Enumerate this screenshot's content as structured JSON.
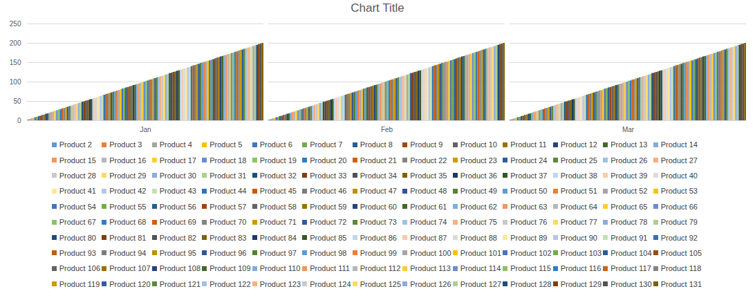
{
  "chart_data": {
    "type": "bar",
    "title": "Chart Title",
    "categories": [
      "Jan",
      "Feb",
      "Mar"
    ],
    "ylim": [
      0,
      250
    ],
    "yticks": [
      0,
      50,
      100,
      150,
      200,
      250
    ],
    "grid": true,
    "legend": "bottom",
    "series": [
      {
        "name": "Product 2",
        "color": "#5B9BD5",
        "values": [
          2,
          2,
          2
        ]
      },
      {
        "name": "Product 3",
        "color": "#ED7D31",
        "values": [
          3,
          3,
          3
        ]
      },
      {
        "name": "Product 4",
        "color": "#A5A5A5",
        "values": [
          5,
          5,
          5
        ]
      },
      {
        "name": "Product 5",
        "color": "#FFC000",
        "values": [
          6,
          6,
          6
        ]
      },
      {
        "name": "Product 6",
        "color": "#4472C4",
        "values": [
          8,
          8,
          8
        ]
      },
      {
        "name": "Product 7",
        "color": "#70AD47",
        "values": [
          9,
          9,
          9
        ]
      },
      {
        "name": "Product 8",
        "color": "#255E91",
        "values": [
          11,
          11,
          11
        ]
      },
      {
        "name": "Product 9",
        "color": "#9E480E",
        "values": [
          12,
          12,
          12
        ]
      },
      {
        "name": "Product 10",
        "color": "#636363",
        "values": [
          14,
          14,
          14
        ]
      },
      {
        "name": "Product 11",
        "color": "#997300",
        "values": [
          15,
          15,
          15
        ]
      },
      {
        "name": "Product 12",
        "color": "#264478",
        "values": [
          17,
          17,
          17
        ]
      },
      {
        "name": "Product 13",
        "color": "#43682B",
        "values": [
          18,
          18,
          18
        ]
      },
      {
        "name": "Product 14",
        "color": "#7CAFDD",
        "values": [
          20,
          20,
          20
        ]
      },
      {
        "name": "Product 15",
        "color": "#F1975A",
        "values": [
          22,
          22,
          22
        ]
      },
      {
        "name": "Product 16",
        "color": "#B7B7B7",
        "values": [
          23,
          23,
          23
        ]
      },
      {
        "name": "Product 17",
        "color": "#FFCD33",
        "values": [
          25,
          25,
          25
        ]
      },
      {
        "name": "Product 18",
        "color": "#698ED0",
        "values": [
          26,
          26,
          26
        ]
      },
      {
        "name": "Product 19",
        "color": "#8CC168",
        "values": [
          28,
          28,
          28
        ]
      },
      {
        "name": "Product 20",
        "color": "#327DC2",
        "values": [
          29,
          29,
          29
        ]
      },
      {
        "name": "Product 21",
        "color": "#D26012",
        "values": [
          31,
          31,
          31
        ]
      },
      {
        "name": "Product 22",
        "color": "#848484",
        "values": [
          32,
          32,
          32
        ]
      },
      {
        "name": "Product 23",
        "color": "#CC9A00",
        "values": [
          34,
          34,
          34
        ]
      },
      {
        "name": "Product 24",
        "color": "#335AA1",
        "values": [
          35,
          35,
          35
        ]
      },
      {
        "name": "Product 25",
        "color": "#5A8A39",
        "values": [
          37,
          37,
          37
        ]
      },
      {
        "name": "Product 26",
        "color": "#9DC3E6",
        "values": [
          38,
          38,
          38
        ]
      },
      {
        "name": "Product 27",
        "color": "#F4B183",
        "values": [
          40,
          40,
          40
        ]
      },
      {
        "name": "Product 28",
        "color": "#C9C9C9",
        "values": [
          42,
          42,
          42
        ]
      },
      {
        "name": "Product 29",
        "color": "#FFD966",
        "values": [
          43,
          43,
          43
        ]
      },
      {
        "name": "Product 30",
        "color": "#8FAADC",
        "values": [
          45,
          45,
          45
        ]
      },
      {
        "name": "Product 31",
        "color": "#A9D18E",
        "values": [
          46,
          46,
          46
        ]
      },
      {
        "name": "Product 32",
        "color": "#1F4E79",
        "values": [
          48,
          48,
          48
        ]
      },
      {
        "name": "Product 33",
        "color": "#843C0C",
        "values": [
          49,
          49,
          49
        ]
      },
      {
        "name": "Product 34",
        "color": "#525252",
        "values": [
          51,
          51,
          51
        ]
      },
      {
        "name": "Product 35",
        "color": "#7F6000",
        "values": [
          52,
          52,
          52
        ]
      },
      {
        "name": "Product 36",
        "color": "#203864",
        "values": [
          54,
          54,
          54
        ]
      },
      {
        "name": "Product 37",
        "color": "#385723",
        "values": [
          55,
          55,
          55
        ]
      },
      {
        "name": "Product 38",
        "color": "#BDD7EE",
        "values": [
          57,
          57,
          57
        ]
      },
      {
        "name": "Product 39",
        "color": "#F8CBAD",
        "values": [
          58,
          58,
          58
        ]
      },
      {
        "name": "Product 40",
        "color": "#DBDBDB",
        "values": [
          60,
          60,
          60
        ]
      },
      {
        "name": "Product 41",
        "color": "#FFE699",
        "values": [
          62,
          62,
          62
        ]
      },
      {
        "name": "Product 42",
        "color": "#B4C7E7",
        "values": [
          63,
          63,
          63
        ]
      },
      {
        "name": "Product 43",
        "color": "#C5E0B4",
        "values": [
          65,
          65,
          65
        ]
      },
      {
        "name": "Product 44",
        "color": "#2E75B6",
        "values": [
          66,
          66,
          66
        ]
      },
      {
        "name": "Product 45",
        "color": "#C55A11",
        "values": [
          68,
          68,
          68
        ]
      },
      {
        "name": "Product 46",
        "color": "#7B7B7B",
        "values": [
          69,
          69,
          69
        ]
      },
      {
        "name": "Product 47",
        "color": "#BF9000",
        "values": [
          71,
          71,
          71
        ]
      },
      {
        "name": "Product 48",
        "color": "#2F5597",
        "values": [
          72,
          72,
          72
        ]
      },
      {
        "name": "Product 49",
        "color": "#548235",
        "values": [
          74,
          74,
          74
        ]
      },
      {
        "name": "Product 50",
        "color": "#5B9BD5",
        "values": [
          75,
          75,
          75
        ]
      },
      {
        "name": "Product 51",
        "color": "#ED7D31",
        "values": [
          77,
          77,
          77
        ]
      },
      {
        "name": "Product 52",
        "color": "#A5A5A5",
        "values": [
          78,
          78,
          78
        ]
      },
      {
        "name": "Product 53",
        "color": "#FFC000",
        "values": [
          80,
          80,
          80
        ]
      },
      {
        "name": "Product 54",
        "color": "#4472C4",
        "values": [
          82,
          82,
          82
        ]
      },
      {
        "name": "Product 55",
        "color": "#70AD47",
        "values": [
          83,
          83,
          83
        ]
      },
      {
        "name": "Product 56",
        "color": "#255E91",
        "values": [
          85,
          85,
          85
        ]
      },
      {
        "name": "Product 57",
        "color": "#9E480E",
        "values": [
          86,
          86,
          86
        ]
      },
      {
        "name": "Product 58",
        "color": "#636363",
        "values": [
          88,
          88,
          88
        ]
      },
      {
        "name": "Product 59",
        "color": "#997300",
        "values": [
          89,
          89,
          89
        ]
      },
      {
        "name": "Product 60",
        "color": "#264478",
        "values": [
          91,
          91,
          91
        ]
      },
      {
        "name": "Product 61",
        "color": "#43682B",
        "values": [
          92,
          92,
          92
        ]
      },
      {
        "name": "Product 62",
        "color": "#7CAFDD",
        "values": [
          94,
          94,
          94
        ]
      },
      {
        "name": "Product 63",
        "color": "#F1975A",
        "values": [
          95,
          95,
          95
        ]
      },
      {
        "name": "Product 64",
        "color": "#B7B7B7",
        "values": [
          97,
          97,
          97
        ]
      },
      {
        "name": "Product 65",
        "color": "#FFCD33",
        "values": [
          98,
          98,
          98
        ]
      },
      {
        "name": "Product 66",
        "color": "#698ED0",
        "values": [
          100,
          100,
          100
        ]
      },
      {
        "name": "Product 67",
        "color": "#8CC168",
        "values": [
          102,
          102,
          102
        ]
      },
      {
        "name": "Product 68",
        "color": "#327DC2",
        "values": [
          103,
          103,
          103
        ]
      },
      {
        "name": "Product 69",
        "color": "#D26012",
        "values": [
          105,
          105,
          105
        ]
      },
      {
        "name": "Product 70",
        "color": "#848484",
        "values": [
          106,
          106,
          106
        ]
      },
      {
        "name": "Product 71",
        "color": "#CC9A00",
        "values": [
          108,
          108,
          108
        ]
      },
      {
        "name": "Product 72",
        "color": "#335AA1",
        "values": [
          109,
          109,
          109
        ]
      },
      {
        "name": "Product 73",
        "color": "#5A8A39",
        "values": [
          111,
          111,
          111
        ]
      },
      {
        "name": "Product 74",
        "color": "#9DC3E6",
        "values": [
          112,
          112,
          112
        ]
      },
      {
        "name": "Product 75",
        "color": "#F4B183",
        "values": [
          114,
          114,
          114
        ]
      },
      {
        "name": "Product 76",
        "color": "#C9C9C9",
        "values": [
          115,
          115,
          115
        ]
      },
      {
        "name": "Product 77",
        "color": "#FFD966",
        "values": [
          117,
          117,
          117
        ]
      },
      {
        "name": "Product 78",
        "color": "#8FAADC",
        "values": [
          118,
          118,
          118
        ]
      },
      {
        "name": "Product 79",
        "color": "#A9D18E",
        "values": [
          120,
          120,
          120
        ]
      },
      {
        "name": "Product 80",
        "color": "#1F4E79",
        "values": [
          122,
          122,
          122
        ]
      },
      {
        "name": "Product 81",
        "color": "#843C0C",
        "values": [
          123,
          123,
          123
        ]
      },
      {
        "name": "Product 82",
        "color": "#525252",
        "values": [
          125,
          125,
          125
        ]
      },
      {
        "name": "Product 83",
        "color": "#7F6000",
        "values": [
          126,
          126,
          126
        ]
      },
      {
        "name": "Product 84",
        "color": "#203864",
        "values": [
          128,
          128,
          128
        ]
      },
      {
        "name": "Product 85",
        "color": "#385723",
        "values": [
          129,
          129,
          129
        ]
      },
      {
        "name": "Product 86",
        "color": "#BDD7EE",
        "values": [
          131,
          131,
          131
        ]
      },
      {
        "name": "Product 87",
        "color": "#F8CBAD",
        "values": [
          132,
          132,
          132
        ]
      },
      {
        "name": "Product 88",
        "color": "#DBDBDB",
        "values": [
          134,
          134,
          134
        ]
      },
      {
        "name": "Product 89",
        "color": "#FFE699",
        "values": [
          135,
          135,
          135
        ]
      },
      {
        "name": "Product 90",
        "color": "#B4C7E7",
        "values": [
          137,
          137,
          137
        ]
      },
      {
        "name": "Product 91",
        "color": "#C5E0B4",
        "values": [
          138,
          138,
          138
        ]
      },
      {
        "name": "Product 92",
        "color": "#2E75B6",
        "values": [
          140,
          140,
          140
        ]
      },
      {
        "name": "Product 93",
        "color": "#C55A11",
        "values": [
          142,
          142,
          142
        ]
      },
      {
        "name": "Product 94",
        "color": "#7B7B7B",
        "values": [
          143,
          143,
          143
        ]
      },
      {
        "name": "Product 95",
        "color": "#BF9000",
        "values": [
          145,
          145,
          145
        ]
      },
      {
        "name": "Product 96",
        "color": "#2F5597",
        "values": [
          146,
          146,
          146
        ]
      },
      {
        "name": "Product 97",
        "color": "#548235",
        "values": [
          148,
          148,
          148
        ]
      },
      {
        "name": "Product 98",
        "color": "#5B9BD5",
        "values": [
          149,
          149,
          149
        ]
      },
      {
        "name": "Product 99",
        "color": "#ED7D31",
        "values": [
          151,
          151,
          151
        ]
      },
      {
        "name": "Product 100",
        "color": "#A5A5A5",
        "values": [
          152,
          152,
          152
        ]
      },
      {
        "name": "Product 101",
        "color": "#FFC000",
        "values": [
          154,
          154,
          154
        ]
      },
      {
        "name": "Product 102",
        "color": "#4472C4",
        "values": [
          155,
          155,
          155
        ]
      },
      {
        "name": "Product 103",
        "color": "#70AD47",
        "values": [
          157,
          157,
          157
        ]
      },
      {
        "name": "Product 104",
        "color": "#255E91",
        "values": [
          158,
          158,
          158
        ]
      },
      {
        "name": "Product 105",
        "color": "#9E480E",
        "values": [
          160,
          160,
          160
        ]
      },
      {
        "name": "Product 106",
        "color": "#636363",
        "values": [
          162,
          162,
          162
        ]
      },
      {
        "name": "Product 107",
        "color": "#997300",
        "values": [
          163,
          163,
          163
        ]
      },
      {
        "name": "Product 108",
        "color": "#264478",
        "values": [
          165,
          165,
          165
        ]
      },
      {
        "name": "Product 109",
        "color": "#43682B",
        "values": [
          166,
          166,
          166
        ]
      },
      {
        "name": "Product 110",
        "color": "#7CAFDD",
        "values": [
          168,
          168,
          168
        ]
      },
      {
        "name": "Product 111",
        "color": "#F1975A",
        "values": [
          169,
          169,
          169
        ]
      },
      {
        "name": "Product 112",
        "color": "#B7B7B7",
        "values": [
          171,
          171,
          171
        ]
      },
      {
        "name": "Product 113",
        "color": "#FFCD33",
        "values": [
          172,
          172,
          172
        ]
      },
      {
        "name": "Product 114",
        "color": "#698ED0",
        "values": [
          174,
          174,
          174
        ]
      },
      {
        "name": "Product 115",
        "color": "#8CC168",
        "values": [
          175,
          175,
          175
        ]
      },
      {
        "name": "Product 116",
        "color": "#327DC2",
        "values": [
          177,
          177,
          177
        ]
      },
      {
        "name": "Product 117",
        "color": "#D26012",
        "values": [
          178,
          178,
          178
        ]
      },
      {
        "name": "Product 118",
        "color": "#848484",
        "values": [
          180,
          180,
          180
        ]
      },
      {
        "name": "Product 119",
        "color": "#CC9A00",
        "values": [
          182,
          182,
          182
        ]
      },
      {
        "name": "Product 120",
        "color": "#335AA1",
        "values": [
          183,
          183,
          183
        ]
      },
      {
        "name": "Product 121",
        "color": "#5A8A39",
        "values": [
          185,
          185,
          185
        ]
      },
      {
        "name": "Product 122",
        "color": "#9DC3E6",
        "values": [
          186,
          186,
          186
        ]
      },
      {
        "name": "Product 123",
        "color": "#F4B183",
        "values": [
          188,
          188,
          188
        ]
      },
      {
        "name": "Product 124",
        "color": "#C9C9C9",
        "values": [
          189,
          189,
          189
        ]
      },
      {
        "name": "Product 125",
        "color": "#FFD966",
        "values": [
          191,
          191,
          191
        ]
      },
      {
        "name": "Product 126",
        "color": "#8FAADC",
        "values": [
          192,
          192,
          192
        ]
      },
      {
        "name": "Product 127",
        "color": "#A9D18E",
        "values": [
          194,
          194,
          194
        ]
      },
      {
        "name": "Product 128",
        "color": "#1F4E79",
        "values": [
          195,
          195,
          195
        ]
      },
      {
        "name": "Product 129",
        "color": "#843C0C",
        "values": [
          197,
          197,
          197
        ]
      },
      {
        "name": "Product 130",
        "color": "#525252",
        "values": [
          198,
          198,
          198
        ]
      },
      {
        "name": "Product 131",
        "color": "#7F6000",
        "values": [
          200,
          200,
          200
        ]
      }
    ]
  }
}
